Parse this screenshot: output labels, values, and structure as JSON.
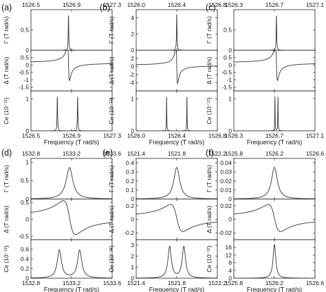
{
  "chart_data": [
    {
      "type": "line",
      "panel_label": "(a)",
      "xlabel": "Frequency (T rad/s)",
      "xlim": [
        1526.5,
        1527.3
      ],
      "xticks": [
        1526.5,
        1526.9,
        1527.3
      ],
      "xtick_labels": [
        "1526.5",
        "1526.9",
        "1527.3"
      ],
      "subplots": [
        {
          "ylabel": "Γ (T rad/s)",
          "ylim": [
            0,
            1.0
          ],
          "yticks": [
            0,
            0.5
          ],
          "ytick_labels": [
            "0",
            "0.5"
          ],
          "curve": {
            "kind": "lorentz",
            "center": 1526.87,
            "width": 0.003,
            "amplitude": 0.85
          }
        },
        {
          "ylabel": "Δ (T rad/s)",
          "ylim": [
            -1.75,
            1.0
          ],
          "yticks": [
            -1.5,
            -1.0,
            -0.5,
            0,
            0.5
          ],
          "ytick_labels": [
            "-1.5",
            "-1",
            "-0.5",
            "0",
            "0.5"
          ],
          "curve": {
            "kind": "dispersion",
            "center": 1526.87,
            "width": 0.01,
            "amplitude": 1.2,
            "offset": 0.15
          }
        },
        {
          "ylabel": "Ce (10⁻¹²)",
          "ylim": [
            0,
            1.25
          ],
          "yticks": [
            0,
            1.0
          ],
          "ytick_labels": [
            "0",
            "1"
          ],
          "curve": {
            "kind": "double",
            "centers": [
              1526.76,
              1526.96
            ],
            "width": 0.003,
            "amplitude": 1.07
          }
        }
      ]
    },
    {
      "type": "line",
      "panel_label": "(b)",
      "xlabel": "Frequency (T rad/s)",
      "xlim": [
        1526.0,
        1526.8
      ],
      "xticks": [
        1526.0,
        1526.4,
        1526.8
      ],
      "xtick_labels": [
        "1526.0",
        "1526.4",
        "1526.8"
      ],
      "subplots": [
        {
          "ylabel": "Γ (T rad/s)",
          "ylim": [
            0,
            5.0
          ],
          "yticks": [
            0,
            2,
            4
          ],
          "ytick_labels": [
            "0",
            "2",
            "4"
          ],
          "curve": {
            "kind": "lorentz",
            "center": 1526.4,
            "width": 0.003,
            "amplitude": 4.4
          }
        },
        {
          "ylabel": "Δ (T rad/s)",
          "ylim": [
            -6.0,
            4.0
          ],
          "yticks": [
            -4,
            -2,
            0,
            2
          ],
          "ytick_labels": [
            "-4",
            "-2",
            "0",
            "2"
          ],
          "curve": {
            "kind": "dispersion",
            "center": 1526.4,
            "width": 0.008,
            "amplitude": 4.5,
            "offset": 0.3
          }
        },
        {
          "ylabel": "Ce (10⁻¹²)",
          "ylim": [
            0,
            1.25
          ],
          "yticks": [
            0,
            1.0
          ],
          "ytick_labels": [
            "0",
            "1"
          ],
          "curve": {
            "kind": "double",
            "centers": [
              1526.3,
              1526.5
            ],
            "width": 0.002,
            "amplitude": 1.07
          }
        }
      ]
    },
    {
      "type": "line",
      "panel_label": "(c)",
      "xlabel": "Frequency (T rad/s)",
      "xlim": [
        1526.3,
        1527.1
      ],
      "xticks": [
        1526.3,
        1526.7,
        1527.1
      ],
      "xtick_labels": [
        "1526.3",
        "1526.7",
        "1527.1"
      ],
      "subplots": [
        {
          "ylabel": "Γ (T rad/s)",
          "ylim": [
            0,
            1.0
          ],
          "yticks": [
            0,
            0.5
          ],
          "ytick_labels": [
            "0",
            "0.5"
          ],
          "curve": {
            "kind": "lorentz",
            "center": 1526.72,
            "width": 0.003,
            "amplitude": 0.85
          }
        },
        {
          "ylabel": "Δ (T rad/s)",
          "ylim": [
            -1.75,
            1.0
          ],
          "yticks": [
            -1.5,
            -1.0,
            -0.5,
            0,
            0.5
          ],
          "ytick_labels": [
            "-1.5",
            "-1",
            "-0.5",
            "0",
            "0.5"
          ],
          "curve": {
            "kind": "dispersion",
            "center": 1526.72,
            "width": 0.01,
            "amplitude": 1.2,
            "offset": 0.15
          }
        },
        {
          "ylabel": "Ce (10⁻¹²)",
          "ylim": [
            0,
            1.25
          ],
          "yticks": [
            0,
            1.0
          ],
          "ytick_labels": [
            "0",
            "1"
          ],
          "curve": {
            "kind": "double",
            "centers": [
              1526.705,
              1526.735
            ],
            "width": 0.002,
            "amplitude": 1.07
          }
        }
      ]
    },
    {
      "type": "line",
      "panel_label": "(d)",
      "xlabel": "Frequency (T rad/s)",
      "xlim": [
        1532.8,
        1533.6
      ],
      "xticks": [
        1532.8,
        1533.2,
        1533.6
      ],
      "xtick_labels": [
        "1532.8",
        "1533.2",
        "1533.6"
      ],
      "subplots": [
        {
          "ylabel": "Γ (T rad/s)",
          "ylim": [
            0,
            1.1
          ],
          "yticks": [
            0,
            0.5,
            1.0
          ],
          "ytick_labels": [
            "0",
            "0.5",
            "1"
          ],
          "curve": {
            "kind": "lorentz",
            "center": 1533.18,
            "width": 0.04,
            "amplitude": 0.85
          }
        },
        {
          "ylabel": "Δ (T rad/s)",
          "ylim": [
            -0.6,
            0.6
          ],
          "yticks": [
            -0.5,
            0,
            0.5
          ],
          "ytick_labels": [
            "-0.5",
            "0",
            "0.5"
          ],
          "curve": {
            "kind": "dispersion",
            "center": 1533.18,
            "width": 0.06,
            "amplitude": 0.5,
            "offset": 0.05
          }
        },
        {
          "ylabel": "Ce (10⁻¹²)",
          "ylim": [
            0,
            0.8
          ],
          "yticks": [
            0,
            0.2,
            0.4,
            0.6
          ],
          "ytick_labels": [
            "0",
            "0.2",
            "0.4",
            "0.6"
          ],
          "curve": {
            "kind": "double",
            "centers": [
              1533.08,
              1533.28
            ],
            "width": 0.025,
            "amplitude": 0.58
          }
        }
      ]
    },
    {
      "type": "line",
      "panel_label": "(e)",
      "xlabel": "Frequency (T rad/s)",
      "xlim": [
        1521.4,
        1522.2
      ],
      "xticks": [
        1521.4,
        1521.8,
        1522.2
      ],
      "xtick_labels": [
        "1521.4",
        "1521.8",
        "1522.2"
      ],
      "subplots": [
        {
          "ylabel": "Γ (T rad/s)",
          "ylim": [
            0,
            0.45
          ],
          "yticks": [
            0,
            0.1,
            0.2,
            0.3,
            0.4
          ],
          "ytick_labels": [
            "0",
            "0.1",
            "0.2",
            "0.3",
            "0.4"
          ],
          "curve": {
            "kind": "lorentz",
            "center": 1521.8,
            "width": 0.035,
            "amplitude": 0.35
          }
        },
        {
          "ylabel": "Δ (T rad/s)",
          "ylim": [
            -0.3,
            0.3
          ],
          "yticks": [
            -0.2,
            0,
            0.2
          ],
          "ytick_labels": [
            "-0.2",
            "0",
            "0.2"
          ],
          "curve": {
            "kind": "dispersion",
            "center": 1521.8,
            "width": 0.06,
            "amplitude": 0.2,
            "offset": 0.02
          }
        },
        {
          "ylabel": "Ce (10⁻¹²)",
          "ylim": [
            0,
            3.5
          ],
          "yticks": [
            0,
            1,
            2,
            3
          ],
          "ytick_labels": [
            "0",
            "1",
            "2",
            "3"
          ],
          "curve": {
            "kind": "double",
            "centers": [
              1521.73,
              1521.87
            ],
            "width": 0.02,
            "amplitude": 2.85
          }
        }
      ]
    },
    {
      "type": "line",
      "panel_label": "(f)",
      "xlabel": "Frequency (T rad/s)",
      "xlim": [
        1525.8,
        1526.6
      ],
      "xticks": [
        1525.8,
        1526.2,
        1526.6
      ],
      "xtick_labels": [
        "1525.8",
        "1526.2",
        "1526.6"
      ],
      "subplots": [
        {
          "ylabel": "Γ (T rad/s)",
          "ylim": [
            0,
            0.045
          ],
          "yticks": [
            0,
            0.01,
            0.02,
            0.03,
            0.04
          ],
          "ytick_labels": [
            "0",
            "0.01",
            "0.02",
            "0.03",
            "0.04"
          ],
          "curve": {
            "kind": "lorentz",
            "center": 1526.2,
            "width": 0.035,
            "amplitude": 0.035
          }
        },
        {
          "ylabel": "Δ (T rad/s)",
          "ylim": [
            -0.03,
            0.03
          ],
          "yticks": [
            -0.02,
            0,
            0.02
          ],
          "ytick_labels": [
            "-0.02",
            "0",
            "0.02"
          ],
          "curve": {
            "kind": "dispersion",
            "center": 1526.2,
            "width": 0.06,
            "amplitude": 0.02,
            "offset": 0.002
          }
        },
        {
          "ylabel": "Ce (10⁻¹²)",
          "ylim": [
            0,
            20
          ],
          "yticks": [
            0,
            4,
            8,
            12,
            16
          ],
          "ytick_labels": [
            "0",
            "4",
            "8",
            "12",
            "16"
          ],
          "curve": {
            "kind": "lorentz",
            "center": 1526.2,
            "width": 0.016,
            "amplitude": 17.5
          }
        }
      ]
    }
  ]
}
